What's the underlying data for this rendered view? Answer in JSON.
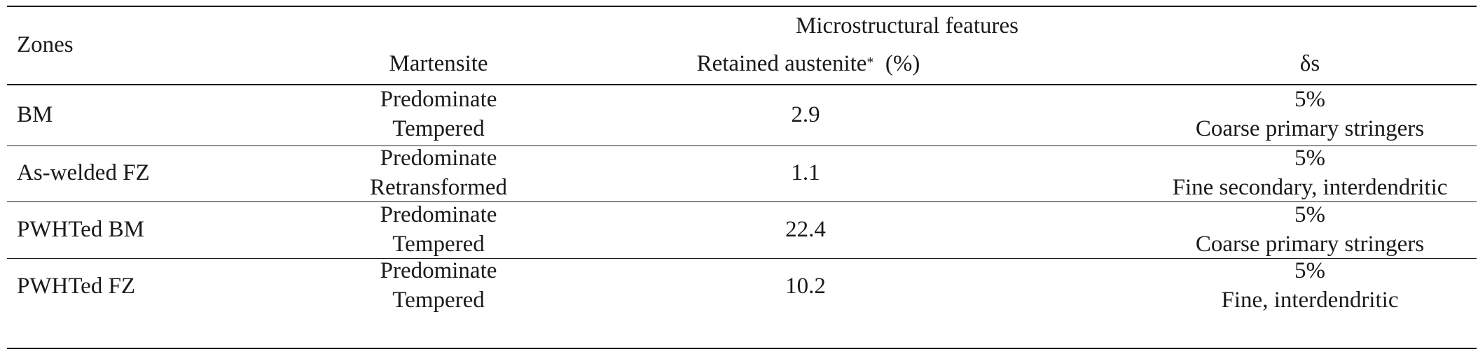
{
  "table": {
    "header": {
      "zones": "Zones",
      "group": "Microstructural features",
      "martensite": "Martensite",
      "retained_austenite": "Retained austenite",
      "retained_austenite_mark": "*",
      "retained_austenite_unit": "(%)",
      "delta": "δs"
    },
    "rows": [
      {
        "zone": "BM",
        "martensite_1": "Predominate",
        "martensite_2": "Tempered",
        "austenite": "2.9",
        "delta_1": "5%",
        "delta_2": "Coarse primary stringers"
      },
      {
        "zone": "As-welded FZ",
        "martensite_1": "Predominate",
        "martensite_2": "Retransformed",
        "austenite": "1.1",
        "delta_1": "5%",
        "delta_2": "Fine secondary, interdendritic"
      },
      {
        "zone": "PWHTed BM",
        "martensite_1": "Predominate",
        "martensite_2": "Tempered",
        "austenite": "22.4",
        "delta_1": "5%",
        "delta_2": "Coarse primary stringers"
      },
      {
        "zone": "PWHTed FZ",
        "martensite_1": "Predominate",
        "martensite_2": "Tempered",
        "austenite": "10.2",
        "delta_1": "5%",
        "delta_2": "Fine, interdendritic"
      }
    ]
  }
}
